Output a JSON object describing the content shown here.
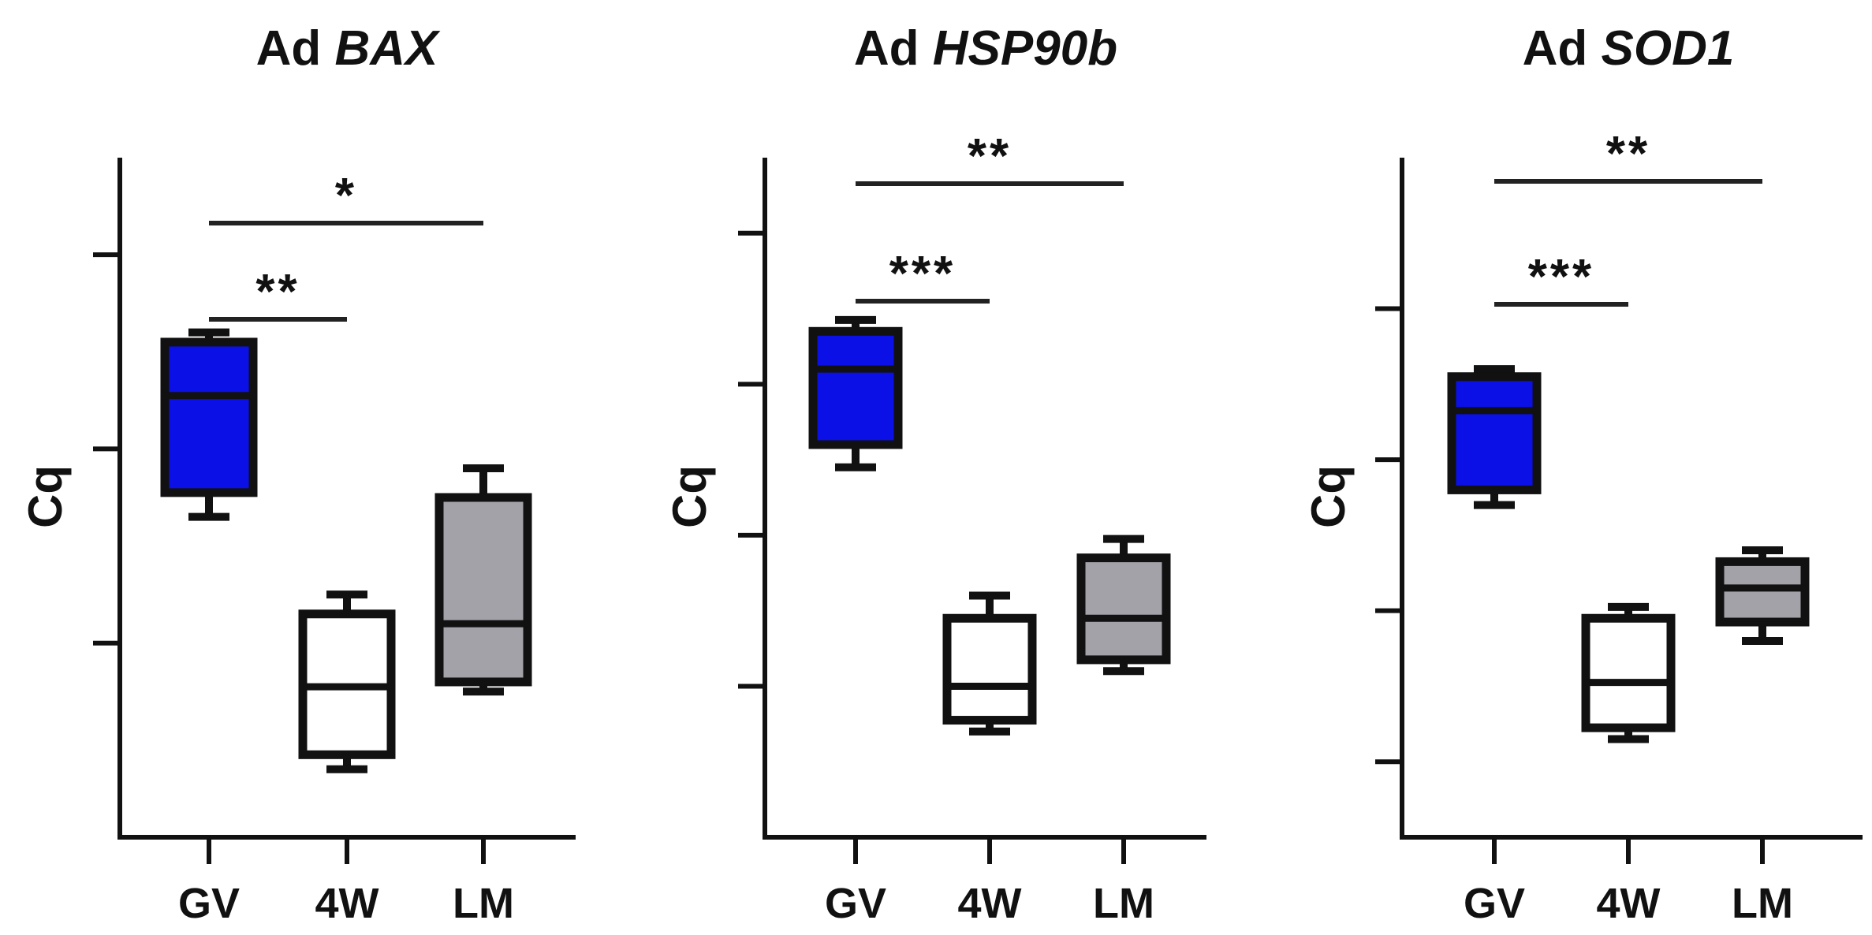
{
  "chart_data": [
    {
      "type": "box",
      "title": "Ad",
      "title_gene": "BAX",
      "ylabel": "Cq",
      "ylim": [
        0,
        7
      ],
      "yticks": [
        2,
        4,
        6
      ],
      "y_tick_labels_shown": false,
      "categories": [
        "GV",
        "4W",
        "LM"
      ],
      "boxes": [
        {
          "category": "GV",
          "min": 3.3,
          "q1": 3.55,
          "median": 4.55,
          "q3": 5.1,
          "max": 5.2,
          "color": "#0a10e6"
        },
        {
          "category": "4W",
          "min": 0.7,
          "q1": 0.85,
          "median": 1.55,
          "q3": 2.3,
          "max": 2.5,
          "color": "#ffffff"
        },
        {
          "category": "LM",
          "min": 1.5,
          "q1": 1.6,
          "median": 2.2,
          "q3": 3.5,
          "max": 3.8,
          "color": "#a2a2a8"
        }
      ],
      "significance": [
        {
          "from": "GV",
          "to": "4W",
          "label": "**"
        },
        {
          "from": "GV",
          "to": "LM",
          "label": "*"
        }
      ]
    },
    {
      "type": "box",
      "title": "Ad",
      "title_gene": "HSP90b",
      "ylabel": "Cq",
      "ylim": [
        0,
        9
      ],
      "yticks": [
        2,
        4,
        6,
        8
      ],
      "y_tick_labels_shown": false,
      "categories": [
        "GV",
        "4W",
        "LM"
      ],
      "boxes": [
        {
          "category": "GV",
          "min": 4.9,
          "q1": 5.2,
          "median": 6.2,
          "q3": 6.7,
          "max": 6.85,
          "color": "#0a10e6"
        },
        {
          "category": "4W",
          "min": 1.4,
          "q1": 1.55,
          "median": 2.0,
          "q3": 2.9,
          "max": 3.2,
          "color": "#ffffff"
        },
        {
          "category": "LM",
          "min": 2.2,
          "q1": 2.35,
          "median": 2.9,
          "q3": 3.7,
          "max": 3.95,
          "color": "#a2a2a8"
        }
      ],
      "significance": [
        {
          "from": "GV",
          "to": "4W",
          "label": "***"
        },
        {
          "from": "GV",
          "to": "LM",
          "label": "**"
        }
      ]
    },
    {
      "type": "box",
      "title": "Ad",
      "title_gene": "SOD1",
      "ylabel": "Cq",
      "ylim": [
        0,
        9
      ],
      "yticks": [
        1,
        3,
        5,
        7
      ],
      "y_tick_labels_shown": false,
      "categories": [
        "GV",
        "4W",
        "LM"
      ],
      "boxes": [
        {
          "category": "GV",
          "min": 4.4,
          "q1": 4.6,
          "median": 5.65,
          "q3": 6.1,
          "max": 6.2,
          "color": "#0a10e6"
        },
        {
          "category": "4W",
          "min": 1.3,
          "q1": 1.45,
          "median": 2.05,
          "q3": 2.9,
          "max": 3.05,
          "color": "#ffffff"
        },
        {
          "category": "LM",
          "min": 2.6,
          "q1": 2.85,
          "median": 3.3,
          "q3": 3.65,
          "max": 3.8,
          "color": "#a2a2a8"
        }
      ],
      "significance": [
        {
          "from": "GV",
          "to": "4W",
          "label": "***"
        },
        {
          "from": "GV",
          "to": "LM",
          "label": "**"
        }
      ]
    }
  ]
}
